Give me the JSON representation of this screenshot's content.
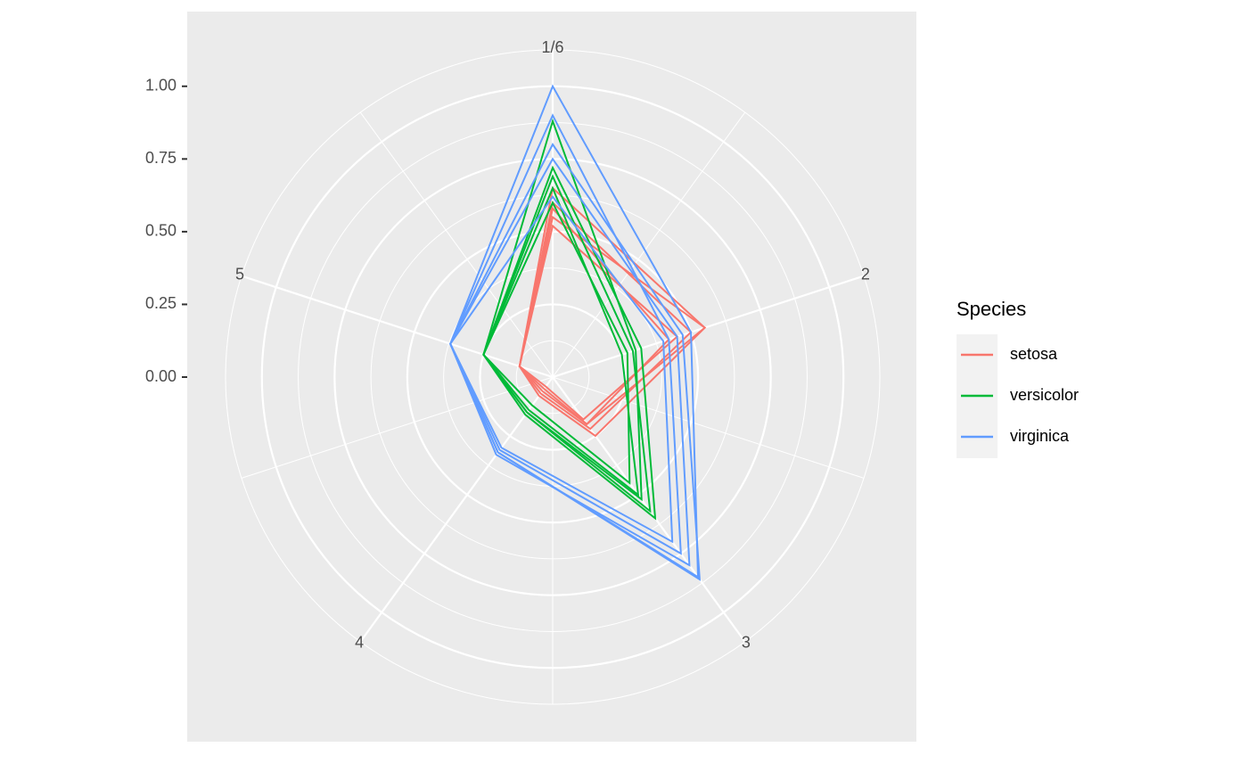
{
  "chart_data": {
    "type": "radar",
    "categories": [
      "1/6",
      "2",
      "3",
      "4",
      "5"
    ],
    "ylim": [
      0,
      1.125
    ],
    "yticks": [
      {
        "value": 0,
        "label": "0.00"
      },
      {
        "value": 0.25,
        "label": "0.25"
      },
      {
        "value": 0.5,
        "label": "0.50"
      },
      {
        "value": 0.75,
        "label": "0.75"
      },
      {
        "value": 1,
        "label": "1.00"
      }
    ],
    "grid": true,
    "legend_title": "Species",
    "legend_position": "right",
    "series": [
      {
        "name": "setosa",
        "color": "#F8766D",
        "values": [
          [
            0.55,
            0.55,
            0.2,
            0.05,
            0.12
          ],
          [
            0.6,
            0.5,
            0.22,
            0.07,
            0.12
          ],
          [
            0.52,
            0.45,
            0.18,
            0.04,
            0.12
          ],
          [
            0.65,
            0.55,
            0.25,
            0.08,
            0.12
          ],
          [
            0.58,
            0.42,
            0.2,
            0.06,
            0.12
          ]
        ]
      },
      {
        "name": "versicolor",
        "color": "#00BA38",
        "values": [
          [
            0.69,
            0.29,
            0.57,
            0.15,
            0.25
          ],
          [
            0.65,
            0.25,
            0.5,
            0.14,
            0.25
          ],
          [
            0.72,
            0.32,
            0.6,
            0.16,
            0.25
          ],
          [
            0.6,
            0.27,
            0.45,
            0.12,
            0.25
          ],
          [
            0.88,
            0.3,
            0.52,
            0.15,
            0.25
          ]
        ]
      },
      {
        "name": "virginica",
        "color": "#619CFF",
        "values": [
          [
            0.8,
            0.47,
            0.86,
            0.32,
            0.37
          ],
          [
            1.0,
            0.5,
            0.85,
            0.32,
            0.37
          ],
          [
            0.62,
            0.4,
            0.7,
            0.3,
            0.37
          ],
          [
            0.75,
            0.45,
            0.8,
            0.33,
            0.37
          ],
          [
            0.9,
            0.42,
            0.75,
            0.31,
            0.37
          ]
        ]
      }
    ]
  }
}
